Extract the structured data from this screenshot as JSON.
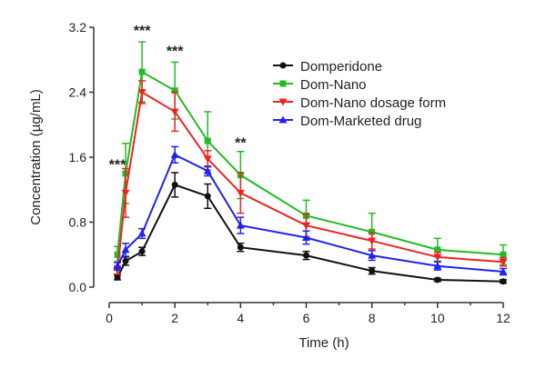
{
  "chart_data": {
    "type": "line",
    "xlabel": "Time (h)",
    "ylabel": "Concentration (µg/mL)",
    "xlim": [
      0,
      12
    ],
    "ylim": [
      0,
      3.2
    ],
    "xticks": [
      "0",
      "2",
      "4",
      "6",
      "8",
      "10",
      "12"
    ],
    "yticks": [
      "0.0",
      "0.8",
      "1.6",
      "2.4",
      "3.2"
    ],
    "grid": false,
    "legend_position": "top-right",
    "x": [
      0.25,
      0.5,
      1,
      2,
      3,
      4,
      6,
      8,
      10,
      12
    ],
    "series": [
      {
        "name": "Domperidone",
        "color": "#111111",
        "marker": "circle",
        "values": [
          0.12,
          0.32,
          0.44,
          1.26,
          1.12,
          0.49,
          0.39,
          0.2,
          0.09,
          0.07
        ],
        "errors": [
          0.03,
          0.05,
          0.05,
          0.15,
          0.15,
          0.05,
          0.05,
          0.04,
          0.02,
          0.02
        ]
      },
      {
        "name": "Dom-Nano",
        "color": "#22bb22",
        "marker": "square",
        "values": [
          0.4,
          1.4,
          2.65,
          2.42,
          1.8,
          1.38,
          0.88,
          0.68,
          0.46,
          0.4
        ],
        "errors": [
          0.1,
          0.37,
          0.37,
          0.35,
          0.36,
          0.29,
          0.19,
          0.23,
          0.14,
          0.12
        ]
      },
      {
        "name": "Dom-Nano dosage form",
        "color": "#ee2222",
        "marker": "triangle-down",
        "values": [
          0.21,
          1.16,
          2.4,
          2.16,
          1.58,
          1.16,
          0.76,
          0.57,
          0.37,
          0.31
        ],
        "errors": [
          0.05,
          0.3,
          0.14,
          0.24,
          0.1,
          0.25,
          0.14,
          0.1,
          0.06,
          0.05
        ]
      },
      {
        "name": "Dom-Marketed drug",
        "color": "#2222ee",
        "marker": "triangle-up",
        "values": [
          0.26,
          0.46,
          0.66,
          1.63,
          1.43,
          0.76,
          0.61,
          0.39,
          0.26,
          0.19
        ],
        "errors": [
          0.05,
          0.08,
          0.06,
          0.1,
          0.06,
          0.1,
          0.08,
          0.06,
          0.05,
          0.04
        ]
      }
    ],
    "annotations": [
      {
        "text": "***",
        "x": 0.0,
        "y": 1.45
      },
      {
        "text": "***",
        "x": 1,
        "y": 3.1
      },
      {
        "text": "***",
        "x": 2,
        "y": 2.85
      },
      {
        "text": "**",
        "x": 4,
        "y": 1.72
      }
    ]
  }
}
